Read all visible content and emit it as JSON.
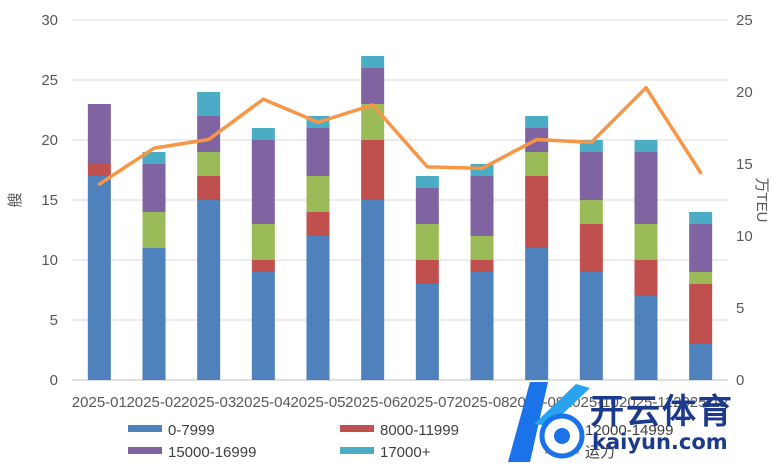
{
  "chart_data": {
    "type": "bar",
    "stacked": true,
    "categories": [
      "2025-01",
      "2025-02",
      "2025-03",
      "2025-04",
      "2025-05",
      "2025-06",
      "2025-07",
      "2025-08",
      "2025-09",
      "2025-10",
      "2025-11",
      "2025-12"
    ],
    "series": [
      {
        "name": "0-7999",
        "color": "#4f81bd",
        "values": [
          17,
          11,
          15,
          9,
          12,
          15,
          8,
          9,
          11,
          9,
          7,
          3
        ]
      },
      {
        "name": "8000-11999",
        "color": "#c0504d",
        "values": [
          1,
          0,
          2,
          1,
          2,
          5,
          2,
          1,
          6,
          4,
          3,
          5
        ]
      },
      {
        "name": "12000-14999",
        "color": "#9bbb59",
        "values": [
          0,
          3,
          2,
          3,
          3,
          3,
          3,
          2,
          2,
          2,
          3,
          1
        ]
      },
      {
        "name": "15000-16999",
        "color": "#8064a2",
        "values": [
          5,
          4,
          3,
          7,
          4,
          3,
          3,
          5,
          2,
          4,
          6,
          4
        ]
      },
      {
        "name": "17000+",
        "color": "#4bacc6",
        "values": [
          0,
          1,
          2,
          1,
          1,
          1,
          1,
          1,
          1,
          1,
          1,
          1
        ]
      }
    ],
    "line": {
      "name": "运力",
      "color": "#f79646",
      "axis": "right",
      "values": [
        13.6,
        16.1,
        16.7,
        19.5,
        17.9,
        19.1,
        14.8,
        14.7,
        16.7,
        16.5,
        20.3,
        14.4
      ]
    },
    "y_left": {
      "label": "艘",
      "ylim": [
        0,
        30
      ],
      "ticks": [
        "0",
        "5",
        "10",
        "15",
        "20",
        "25",
        "30"
      ]
    },
    "y_right": {
      "label": "万TEU",
      "ylim": [
        0,
        25
      ],
      "ticks": [
        "0",
        "5",
        "10",
        "15",
        "20",
        "25"
      ]
    },
    "grid": true,
    "legend_position": "bottom"
  },
  "watermark": {
    "brand": "开云体育",
    "site": "kaiyun.com"
  }
}
